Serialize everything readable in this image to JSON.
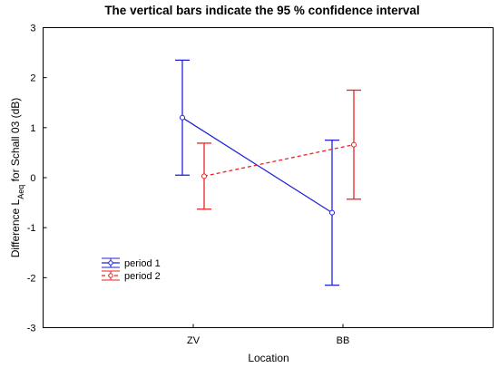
{
  "chart_data": {
    "type": "line",
    "title": "The vertical bars indicate the 95 % confidence interval",
    "xlabel": "Location",
    "ylabel": {
      "prefix": "Difference L",
      "subscript": "Aeq",
      "suffix": " for Schall 03 (dB)"
    },
    "categories": [
      "ZV",
      "BB"
    ],
    "ylim": [
      -3,
      3
    ],
    "yticks": [
      "3",
      "2",
      "1",
      "0",
      "-1",
      "-2",
      "-3"
    ],
    "grid": false,
    "legend_position": "lower-left",
    "series": [
      {
        "name": "period 1",
        "color": "#2222dd",
        "dashed": false,
        "values": [
          1.2,
          -0.7
        ],
        "ci_low": [
          0.05,
          -2.15
        ],
        "ci_high": [
          2.35,
          0.75
        ]
      },
      {
        "name": "period 2",
        "color": "#ee2222",
        "dashed": true,
        "values": [
          0.03,
          0.66
        ],
        "ci_low": [
          -0.63,
          -0.43
        ],
        "ci_high": [
          0.69,
          1.75
        ]
      }
    ]
  }
}
